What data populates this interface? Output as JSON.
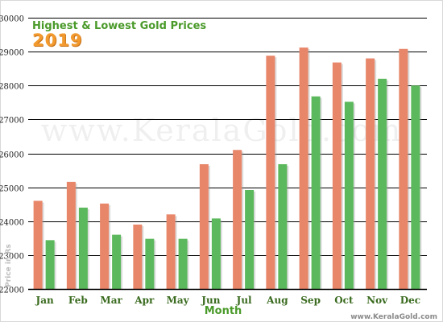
{
  "chart_data": {
    "type": "bar",
    "title": "Highest & Lowest Gold Prices",
    "subtitle": "2019",
    "xlabel": "Month",
    "ylabel": "Price in Rs",
    "watermark": "www.KeralaGold.com",
    "credit": "www.KeralaGold.com",
    "categories": [
      "JAN",
      "FEB",
      "MAR",
      "APR",
      "MAY",
      "JUN",
      "JUL",
      "AUG",
      "SEP",
      "OCT",
      "NOV",
      "DEC"
    ],
    "series": [
      {
        "name": "Highest",
        "color": "#e8866a",
        "values": [
          24600,
          25160,
          24520,
          23900,
          24200,
          25680,
          26100,
          28880,
          29120,
          28680,
          28800,
          29080
        ]
      },
      {
        "name": "Lowest",
        "color": "#5cb85c",
        "values": [
          23440,
          24400,
          23600,
          23480,
          23480,
          24080,
          24920,
          25680,
          27680,
          27520,
          28200,
          28000
        ]
      }
    ],
    "ylim": [
      22000,
      30000
    ],
    "yticks": [
      22000,
      23000,
      24000,
      25000,
      26000,
      27000,
      28000,
      29000,
      30000
    ],
    "grid": true,
    "legend": "none"
  }
}
